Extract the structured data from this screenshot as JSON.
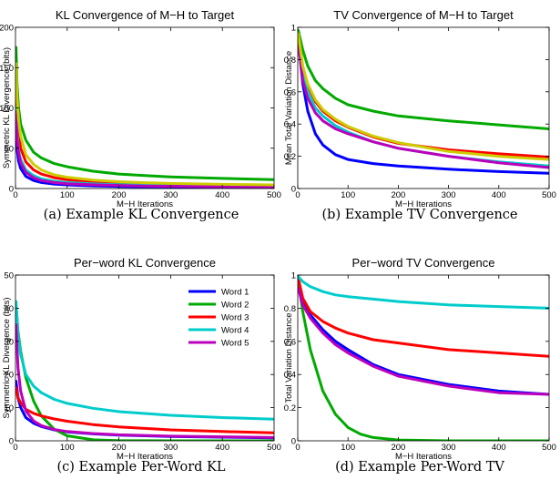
{
  "chart_data": [
    {
      "type": "line",
      "title": "KL Convergence of M−H to Target",
      "xlabel": "M−H Iterations",
      "ylabel": "Symmetric KL Divergence (bits)",
      "caption": "(a)  Example KL Convergence",
      "xlim": [
        0,
        500
      ],
      "ylim": [
        0,
        200
      ],
      "xticks": [
        0,
        100,
        200,
        300,
        400,
        500
      ],
      "yticks": [
        0,
        50,
        100,
        150,
        200
      ],
      "legend": false,
      "series": [
        {
          "color": "#0000ff",
          "x": [
            1,
            3,
            6,
            10,
            20,
            35,
            50,
            75,
            100,
            150,
            200,
            250,
            300,
            400,
            500
          ],
          "y": [
            80,
            50,
            34,
            25,
            15,
            10,
            7.5,
            5.5,
            4.5,
            3.3,
            2.6,
            2.1,
            1.8,
            1.4,
            1.1
          ]
        },
        {
          "color": "#00aa00",
          "x": [
            1,
            3,
            6,
            10,
            20,
            35,
            50,
            75,
            100,
            150,
            200,
            250,
            300,
            400,
            500
          ],
          "y": [
            175,
            130,
            100,
            80,
            60,
            45,
            38,
            31,
            27,
            21.5,
            18,
            16,
            14.5,
            12.5,
            11
          ]
        },
        {
          "color": "#ff0000",
          "x": [
            1,
            3,
            6,
            10,
            20,
            35,
            50,
            75,
            100,
            150,
            200,
            250,
            300,
            400,
            500
          ],
          "y": [
            130,
            92,
            68,
            50,
            33,
            23,
            18,
            13.5,
            11,
            8.5,
            7,
            6,
            5.2,
            4.3,
            3.7
          ]
        },
        {
          "color": "#00cccc",
          "x": [
            1,
            3,
            6,
            10,
            20,
            35,
            50,
            75,
            100,
            150,
            200,
            250,
            300,
            400,
            500
          ],
          "y": [
            100,
            68,
            48,
            36,
            23,
            16,
            12,
            9,
            7.5,
            5.8,
            4.8,
            4.1,
            3.6,
            3.0,
            2.6
          ]
        },
        {
          "color": "#bb00bb",
          "x": [
            1,
            3,
            6,
            10,
            20,
            35,
            50,
            75,
            100,
            150,
            200,
            250,
            300,
            400,
            500
          ],
          "y": [
            95,
            62,
            44,
            32,
            20,
            13.5,
            10,
            7.5,
            6,
            4.6,
            3.8,
            3.2,
            2.8,
            2.3,
            2.0
          ]
        },
        {
          "color": "#cccc00",
          "x": [
            1,
            3,
            6,
            10,
            20,
            35,
            50,
            75,
            100,
            150,
            200,
            250,
            300,
            400,
            500
          ],
          "y": [
            155,
            115,
            85,
            65,
            42,
            30,
            23,
            17,
            14,
            10.5,
            8.5,
            7.2,
            6.3,
            5.2,
            4.5
          ]
        }
      ]
    },
    {
      "type": "line",
      "title": "TV Convergence of M−H to Target",
      "xlabel": "M−H Iterations",
      "ylabel": "Mean Total Variation Distance",
      "caption": "(b)  Example TV Convergence",
      "xlim": [
        0,
        500
      ],
      "ylim": [
        0,
        1
      ],
      "xticks": [
        0,
        100,
        200,
        300,
        400,
        500
      ],
      "yticks": [
        0,
        0.2,
        0.4,
        0.6,
        0.8,
        1
      ],
      "legend": false,
      "series": [
        {
          "color": "#0000ff",
          "x": [
            1,
            10,
            20,
            35,
            50,
            75,
            100,
            150,
            200,
            300,
            400,
            500
          ],
          "y": [
            0.92,
            0.65,
            0.48,
            0.34,
            0.27,
            0.21,
            0.18,
            0.155,
            0.14,
            0.12,
            0.105,
            0.095
          ]
        },
        {
          "color": "#00aa00",
          "x": [
            1,
            10,
            20,
            35,
            50,
            75,
            100,
            150,
            200,
            300,
            400,
            500
          ],
          "y": [
            0.98,
            0.86,
            0.76,
            0.67,
            0.62,
            0.56,
            0.52,
            0.48,
            0.45,
            0.42,
            0.395,
            0.37
          ]
        },
        {
          "color": "#ff0000",
          "x": [
            1,
            10,
            20,
            35,
            50,
            75,
            100,
            150,
            200,
            300,
            400,
            500
          ],
          "y": [
            0.95,
            0.75,
            0.64,
            0.54,
            0.48,
            0.42,
            0.38,
            0.32,
            0.28,
            0.24,
            0.215,
            0.195
          ]
        },
        {
          "color": "#00cccc",
          "x": [
            1,
            10,
            20,
            35,
            50,
            75,
            100,
            150,
            200,
            300,
            400,
            500
          ],
          "y": [
            0.92,
            0.7,
            0.6,
            0.5,
            0.45,
            0.39,
            0.35,
            0.29,
            0.25,
            0.2,
            0.165,
            0.14
          ]
        },
        {
          "color": "#bb00bb",
          "x": [
            1,
            10,
            20,
            35,
            50,
            75,
            100,
            150,
            200,
            300,
            400,
            500
          ],
          "y": [
            0.9,
            0.67,
            0.56,
            0.47,
            0.42,
            0.37,
            0.34,
            0.29,
            0.25,
            0.2,
            0.16,
            0.13
          ]
        },
        {
          "color": "#cccc00",
          "x": [
            1,
            10,
            20,
            35,
            50,
            75,
            100,
            150,
            200,
            300,
            400,
            500
          ],
          "y": [
            0.96,
            0.76,
            0.65,
            0.55,
            0.49,
            0.43,
            0.385,
            0.325,
            0.285,
            0.23,
            0.2,
            0.18
          ]
        }
      ]
    },
    {
      "type": "line",
      "title": "Per−word KL Convergence",
      "xlabel": "M−H Iterations",
      "ylabel": "Symmetric KL Divergence (bits)",
      "caption": "(c)  Example Per-Word KL",
      "xlim": [
        0,
        500
      ],
      "ylim": [
        0,
        50
      ],
      "xticks": [
        0,
        100,
        200,
        300,
        400,
        500
      ],
      "yticks": [
        0,
        10,
        20,
        30,
        40,
        50
      ],
      "legend": true,
      "legend_position": "top-right",
      "series": [
        {
          "name": "Word 1",
          "color": "#0000ff",
          "x": [
            1,
            5,
            10,
            20,
            35,
            50,
            75,
            100,
            150,
            200,
            300,
            400,
            500
          ],
          "y": [
            18,
            13,
            10,
            7,
            5.3,
            4.3,
            3.3,
            2.7,
            2.1,
            1.7,
            1.3,
            1.1,
            0.9
          ]
        },
        {
          "name": "Word 2",
          "color": "#00aa00",
          "x": [
            1,
            5,
            10,
            20,
            35,
            50,
            75,
            100,
            150,
            200,
            300,
            400,
            500
          ],
          "y": [
            41,
            33,
            27,
            19,
            12,
            7.5,
            3.5,
            1.5,
            0.3,
            0.05,
            0,
            0,
            0
          ]
        },
        {
          "name": "Word 3",
          "color": "#ff0000",
          "x": [
            1,
            5,
            10,
            20,
            35,
            50,
            75,
            100,
            150,
            200,
            300,
            400,
            500
          ],
          "y": [
            16,
            13,
            11.5,
            9.5,
            8.3,
            7.5,
            6.6,
            5.9,
            4.9,
            4.2,
            3.3,
            2.8,
            2.4
          ]
        },
        {
          "name": "Word 4",
          "color": "#00cccc",
          "x": [
            1,
            5,
            10,
            20,
            35,
            50,
            75,
            100,
            150,
            200,
            300,
            400,
            500
          ],
          "y": [
            42,
            32,
            26,
            20,
            16.5,
            14.5,
            12.5,
            11.3,
            9.8,
            8.8,
            7.7,
            7.0,
            6.5
          ]
        },
        {
          "name": "Word 5",
          "color": "#bb00bb",
          "x": [
            1,
            5,
            10,
            20,
            35,
            50,
            75,
            100,
            150,
            200,
            300,
            400,
            500
          ],
          "y": [
            35,
            22,
            15,
            9,
            6,
            4.6,
            3.4,
            2.8,
            2.2,
            1.8,
            1.4,
            1.2,
            1.0
          ]
        }
      ]
    },
    {
      "type": "line",
      "title": "Per−word TV Convergence",
      "xlabel": "M−H Iterations",
      "ylabel": "Total Variation Distance",
      "caption": "(d)  Example Per-Word TV",
      "xlim": [
        0,
        500
      ],
      "ylim": [
        0,
        1
      ],
      "xticks": [
        0,
        100,
        200,
        300,
        400,
        500
      ],
      "yticks": [
        0,
        0.2,
        0.4,
        0.6,
        0.8,
        1
      ],
      "legend": false,
      "series": [
        {
          "color": "#0000ff",
          "x": [
            1,
            10,
            25,
            50,
            75,
            100,
            150,
            200,
            300,
            400,
            500
          ],
          "y": [
            0.93,
            0.84,
            0.76,
            0.67,
            0.6,
            0.55,
            0.46,
            0.4,
            0.34,
            0.3,
            0.28
          ]
        },
        {
          "color": "#00aa00",
          "x": [
            1,
            10,
            25,
            50,
            75,
            100,
            125,
            150,
            200,
            300,
            400,
            500
          ],
          "y": [
            0.96,
            0.78,
            0.55,
            0.3,
            0.16,
            0.08,
            0.04,
            0.02,
            0.005,
            0,
            0,
            0
          ]
        },
        {
          "color": "#ff0000",
          "x": [
            1,
            10,
            25,
            50,
            75,
            100,
            150,
            200,
            300,
            400,
            500
          ],
          "y": [
            0.98,
            0.86,
            0.78,
            0.72,
            0.68,
            0.65,
            0.61,
            0.59,
            0.55,
            0.53,
            0.51
          ]
        },
        {
          "color": "#00cccc",
          "x": [
            1,
            10,
            25,
            50,
            75,
            100,
            150,
            200,
            300,
            400,
            500
          ],
          "y": [
            0.99,
            0.96,
            0.93,
            0.9,
            0.88,
            0.87,
            0.855,
            0.84,
            0.82,
            0.81,
            0.8
          ]
        },
        {
          "color": "#bb00bb",
          "x": [
            1,
            10,
            25,
            50,
            75,
            100,
            150,
            200,
            300,
            400,
            500
          ],
          "y": [
            0.92,
            0.82,
            0.74,
            0.65,
            0.58,
            0.53,
            0.45,
            0.39,
            0.33,
            0.29,
            0.28
          ]
        }
      ]
    }
  ]
}
